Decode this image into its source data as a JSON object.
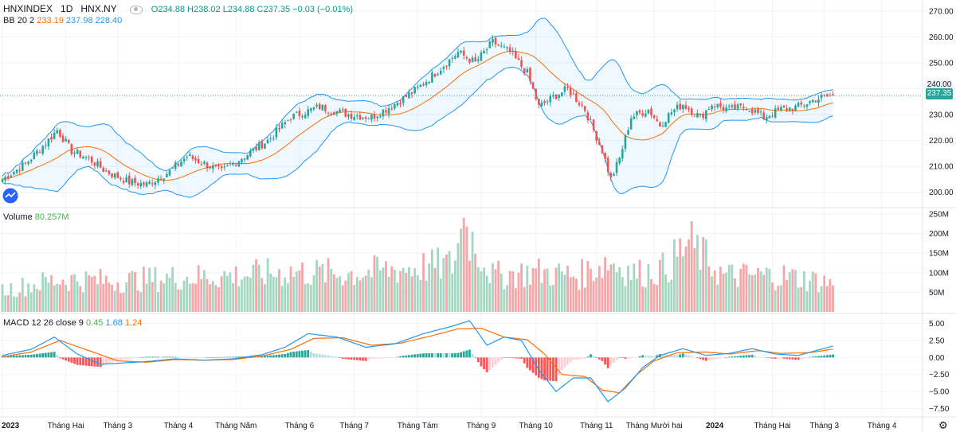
{
  "header": {
    "symbol": "HNXINDEX",
    "interval": "1D",
    "exchange": "HNX.NY",
    "open": "O234.88",
    "high": "H238.02",
    "low": "L234.88",
    "close": "C237.35",
    "change": "−0.03 (−0.01%)"
  },
  "bb_legend": {
    "name": "BB 20 2",
    "basis": "233.19",
    "upper": "237.98",
    "lower": "228.40"
  },
  "volume_legend": {
    "name": "Volume",
    "value": "80.257M"
  },
  "macd_legend": {
    "name": "MACD 12 26 close 9",
    "hist": "0.45",
    "macd": "1.68",
    "signal": "1.24"
  },
  "last_price": {
    "upper_label": "240.00",
    "price_label": "237.35"
  },
  "colors": {
    "up": "#26a69a",
    "down": "#ef5350",
    "bb_band": "#2196f3",
    "bb_basis": "#ff6d00",
    "macd": "#2196f3",
    "signal": "#ff6d00",
    "vol_up": "#a5d6c1",
    "vol_down": "#f5a6a8"
  },
  "chart_data": {
    "type": "candlestick",
    "title": "HNXINDEX 1D HNX.NY",
    "price_axis": {
      "ticks": [
        200,
        210,
        220,
        230,
        240,
        250,
        260,
        270
      ],
      "tick_labels": [
        "200.00",
        "210.00",
        "220.00",
        "230.00",
        "240.00",
        "250.00",
        "260.00",
        "270.00"
      ],
      "range": [
        195,
        273
      ]
    },
    "volume_axis": {
      "ticks": [
        50,
        100,
        150,
        200,
        250
      ],
      "tick_labels": [
        "50M",
        "100M",
        "150M",
        "200M",
        "250M"
      ],
      "range": [
        0,
        260
      ]
    },
    "macd_axis": {
      "ticks": [
        5,
        2.5,
        0,
        -2.5,
        -5,
        -7.5
      ],
      "tick_labels": [
        "5.00",
        "2.50",
        "0.00",
        "−2.50",
        "−5.00",
        "−7.50"
      ],
      "range": [
        -8.5,
        6
      ]
    },
    "x_axis": {
      "labels": [
        "2023",
        "Tháng Hai",
        "Tháng 3",
        "Tháng 4",
        "Tháng Năm",
        "Tháng 6",
        "Tháng 7",
        "Tháng Tám",
        "Tháng 9",
        "Tháng 10",
        "Tháng 11",
        "Tháng Mười hai",
        "2024",
        "Tháng Hai",
        "Tháng 3",
        "Tháng 4"
      ],
      "label_bar_index": [
        0,
        22,
        40,
        61,
        81,
        103,
        122,
        144,
        166,
        185,
        206,
        226,
        247,
        267,
        285,
        305
      ]
    },
    "close_anchors": [
      [
        0,
        205
      ],
      [
        8,
        211
      ],
      [
        15,
        219
      ],
      [
        19,
        224
      ],
      [
        24,
        216
      ],
      [
        30,
        213
      ],
      [
        36,
        208
      ],
      [
        44,
        204
      ],
      [
        50,
        203
      ],
      [
        58,
        208
      ],
      [
        64,
        214
      ],
      [
        70,
        211
      ],
      [
        76,
        208
      ],
      [
        84,
        214
      ],
      [
        92,
        220
      ],
      [
        100,
        229
      ],
      [
        110,
        233
      ],
      [
        120,
        230
      ],
      [
        128,
        229
      ],
      [
        136,
        234
      ],
      [
        144,
        240
      ],
      [
        152,
        248
      ],
      [
        158,
        254
      ],
      [
        164,
        250
      ],
      [
        170,
        258
      ],
      [
        176,
        254
      ],
      [
        182,
        246
      ],
      [
        186,
        233
      ],
      [
        190,
        236
      ],
      [
        196,
        240
      ],
      [
        202,
        232
      ],
      [
        208,
        216
      ],
      [
        211,
        205
      ],
      [
        214,
        213
      ],
      [
        218,
        229
      ],
      [
        224,
        232
      ],
      [
        228,
        226
      ],
      [
        232,
        231
      ],
      [
        236,
        234
      ],
      [
        242,
        229
      ],
      [
        246,
        234
      ],
      [
        252,
        232
      ],
      [
        258,
        233
      ],
      [
        264,
        229
      ],
      [
        270,
        232
      ],
      [
        276,
        233
      ],
      [
        282,
        236
      ],
      [
        288,
        237.35
      ]
    ],
    "volume_anchors": [
      [
        0,
        60
      ],
      [
        20,
        90
      ],
      [
        40,
        85
      ],
      [
        60,
        95
      ],
      [
        80,
        100
      ],
      [
        100,
        110
      ],
      [
        120,
        105
      ],
      [
        140,
        120
      ],
      [
        156,
        130
      ],
      [
        160,
        240
      ],
      [
        170,
        100
      ],
      [
        185,
        110
      ],
      [
        200,
        100
      ],
      [
        210,
        140
      ],
      [
        220,
        105
      ],
      [
        230,
        120
      ],
      [
        238,
        190
      ],
      [
        250,
        100
      ],
      [
        270,
        100
      ],
      [
        288,
        80
      ]
    ],
    "macd_anchors": [
      [
        0,
        0.3
      ],
      [
        10,
        1.2
      ],
      [
        18,
        3.0
      ],
      [
        26,
        0.5
      ],
      [
        34,
        -1.0
      ],
      [
        42,
        -0.8
      ],
      [
        50,
        -0.6
      ],
      [
        60,
        -0.2
      ],
      [
        70,
        -0.4
      ],
      [
        80,
        -0.2
      ],
      [
        90,
        0.4
      ],
      [
        98,
        1.5
      ],
      [
        106,
        3.5
      ],
      [
        116,
        3.0
      ],
      [
        126,
        1.5
      ],
      [
        136,
        2.0
      ],
      [
        146,
        3.5
      ],
      [
        156,
        4.6
      ],
      [
        162,
        5.4
      ],
      [
        168,
        1.8
      ],
      [
        174,
        3.0
      ],
      [
        180,
        2.5
      ],
      [
        186,
        -1.8
      ],
      [
        192,
        -5.0
      ],
      [
        198,
        -3.0
      ],
      [
        204,
        -3.0
      ],
      [
        210,
        -6.5
      ],
      [
        216,
        -4.5
      ],
      [
        222,
        -1.5
      ],
      [
        228,
        0.3
      ],
      [
        236,
        1.3
      ],
      [
        244,
        0.3
      ],
      [
        252,
        0.6
      ],
      [
        260,
        1.3
      ],
      [
        268,
        0.5
      ],
      [
        276,
        0.3
      ],
      [
        282,
        1.0
      ],
      [
        288,
        1.68
      ]
    ],
    "signal_anchors": [
      [
        0,
        0.1
      ],
      [
        10,
        0.8
      ],
      [
        20,
        2.5
      ],
      [
        30,
        1.0
      ],
      [
        40,
        -0.5
      ],
      [
        50,
        -0.7
      ],
      [
        60,
        -0.3
      ],
      [
        70,
        -0.4
      ],
      [
        80,
        -0.3
      ],
      [
        90,
        0.2
      ],
      [
        100,
        1.2
      ],
      [
        108,
        2.8
      ],
      [
        118,
        2.9
      ],
      [
        128,
        1.8
      ],
      [
        138,
        2.1
      ],
      [
        148,
        3.1
      ],
      [
        158,
        4.2
      ],
      [
        166,
        4.3
      ],
      [
        174,
        3.0
      ],
      [
        182,
        2.6
      ],
      [
        188,
        0.5
      ],
      [
        194,
        -2.5
      ],
      [
        202,
        -2.8
      ],
      [
        208,
        -4.8
      ],
      [
        214,
        -5.2
      ],
      [
        220,
        -2.5
      ],
      [
        226,
        -0.5
      ],
      [
        234,
        0.7
      ],
      [
        244,
        0.8
      ],
      [
        252,
        0.5
      ],
      [
        262,
        1.0
      ],
      [
        270,
        0.6
      ],
      [
        280,
        0.7
      ],
      [
        288,
        1.24
      ]
    ]
  }
}
